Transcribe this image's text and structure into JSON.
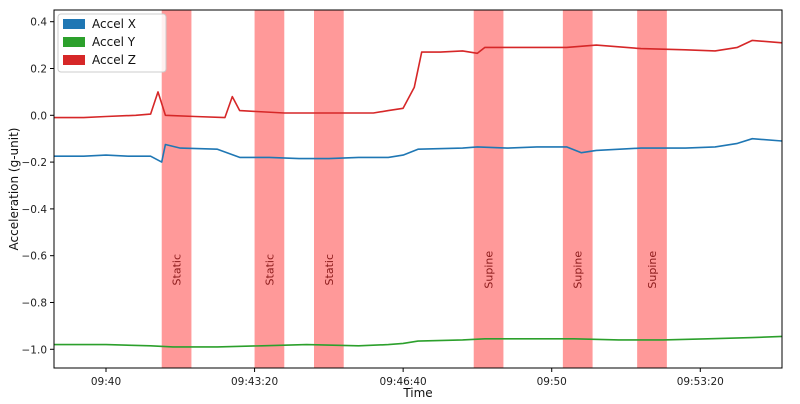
{
  "chart_data": {
    "type": "line",
    "title": "",
    "xlabel": "Time",
    "ylabel": "Acceleration (g-unit)",
    "x_ticks": [
      "09:40",
      "09:43:20",
      "09:46:40",
      "09:50",
      "09:53:20"
    ],
    "y_ticks": [
      "0.4",
      "0.2",
      "0.0",
      "−0.2",
      "−0.4",
      "−0.6",
      "−0.8",
      "−1.0"
    ],
    "xlim": [
      "09:38:50",
      "09:55:10"
    ],
    "ylim": [
      -1.08,
      0.45
    ],
    "grid": false,
    "legend_position": "top-left",
    "series": [
      {
        "name": "Accel X",
        "color": "#1f77b4",
        "points": [
          [
            "09:38:50",
            -0.175
          ],
          [
            "09:39:30",
            -0.175
          ],
          [
            "09:40:00",
            -0.17
          ],
          [
            "09:40:30",
            -0.175
          ],
          [
            "09:41:00",
            -0.175
          ],
          [
            "09:41:15",
            -0.2
          ],
          [
            "09:41:20",
            -0.125
          ],
          [
            "09:41:40",
            -0.14
          ],
          [
            "09:42:30",
            -0.145
          ],
          [
            "09:43:00",
            -0.18
          ],
          [
            "09:43:40",
            -0.18
          ],
          [
            "09:44:20",
            -0.185
          ],
          [
            "09:45:00",
            -0.185
          ],
          [
            "09:45:40",
            -0.18
          ],
          [
            "09:46:20",
            -0.18
          ],
          [
            "09:46:40",
            -0.17
          ],
          [
            "09:47:00",
            -0.145
          ],
          [
            "09:48:00",
            -0.14
          ],
          [
            "09:48:20",
            -0.135
          ],
          [
            "09:49:00",
            -0.14
          ],
          [
            "09:49:40",
            -0.135
          ],
          [
            "09:50:20",
            -0.135
          ],
          [
            "09:50:40",
            -0.16
          ],
          [
            "09:51:00",
            -0.15
          ],
          [
            "09:52:00",
            -0.14
          ],
          [
            "09:53:00",
            -0.14
          ],
          [
            "09:53:40",
            -0.135
          ],
          [
            "09:54:10",
            -0.12
          ],
          [
            "09:54:30",
            -0.1
          ],
          [
            "09:55:10",
            -0.11
          ]
        ]
      },
      {
        "name": "Accel Y",
        "color": "#2ca02c",
        "points": [
          [
            "09:38:50",
            -0.98
          ],
          [
            "09:40:00",
            -0.98
          ],
          [
            "09:41:00",
            -0.985
          ],
          [
            "09:41:30",
            -0.99
          ],
          [
            "09:42:30",
            -0.99
          ],
          [
            "09:43:30",
            -0.985
          ],
          [
            "09:44:30",
            -0.98
          ],
          [
            "09:45:40",
            -0.985
          ],
          [
            "09:46:20",
            -0.98
          ],
          [
            "09:46:40",
            -0.975
          ],
          [
            "09:47:00",
            -0.965
          ],
          [
            "09:48:00",
            -0.96
          ],
          [
            "09:48:30",
            -0.955
          ],
          [
            "09:49:30",
            -0.955
          ],
          [
            "09:50:30",
            -0.955
          ],
          [
            "09:51:30",
            -0.96
          ],
          [
            "09:52:30",
            -0.96
          ],
          [
            "09:53:30",
            -0.955
          ],
          [
            "09:54:30",
            -0.95
          ],
          [
            "09:55:10",
            -0.945
          ]
        ]
      },
      {
        "name": "Accel Z",
        "color": "#d62728",
        "points": [
          [
            "09:38:50",
            -0.01
          ],
          [
            "09:39:30",
            -0.01
          ],
          [
            "09:40:00",
            -0.005
          ],
          [
            "09:40:40",
            0.0
          ],
          [
            "09:41:00",
            0.005
          ],
          [
            "09:41:10",
            0.1
          ],
          [
            "09:41:20",
            0.0
          ],
          [
            "09:42:00",
            -0.005
          ],
          [
            "09:42:40",
            -0.01
          ],
          [
            "09:42:50",
            0.08
          ],
          [
            "09:43:00",
            0.02
          ],
          [
            "09:44:00",
            0.01
          ],
          [
            "09:45:00",
            0.01
          ],
          [
            "09:46:00",
            0.01
          ],
          [
            "09:46:20",
            0.02
          ],
          [
            "09:46:40",
            0.03
          ],
          [
            "09:46:55",
            0.12
          ],
          [
            "09:47:05",
            0.27
          ],
          [
            "09:47:30",
            0.27
          ],
          [
            "09:48:00",
            0.275
          ],
          [
            "09:48:20",
            0.265
          ],
          [
            "09:48:30",
            0.29
          ],
          [
            "09:49:20",
            0.29
          ],
          [
            "09:50:20",
            0.29
          ],
          [
            "09:51:00",
            0.3
          ],
          [
            "09:52:00",
            0.285
          ],
          [
            "09:53:00",
            0.28
          ],
          [
            "09:53:40",
            0.275
          ],
          [
            "09:54:10",
            0.29
          ],
          [
            "09:54:30",
            0.32
          ],
          [
            "09:55:10",
            0.31
          ]
        ]
      }
    ],
    "shaded_regions": [
      {
        "label": "Static",
        "start": "09:41:15",
        "end": "09:41:55",
        "color": "#ff8080"
      },
      {
        "label": "Static",
        "start": "09:43:20",
        "end": "09:44:00",
        "color": "#ff8080"
      },
      {
        "label": "Static",
        "start": "09:44:40",
        "end": "09:45:20",
        "color": "#ff8080"
      },
      {
        "label": "Supine",
        "start": "09:48:15",
        "end": "09:48:55",
        "color": "#ff8080"
      },
      {
        "label": "Supine",
        "start": "09:50:15",
        "end": "09:50:55",
        "color": "#ff8080"
      },
      {
        "label": "Supine",
        "start": "09:51:55",
        "end": "09:52:35",
        "color": "#ff8080"
      }
    ]
  }
}
